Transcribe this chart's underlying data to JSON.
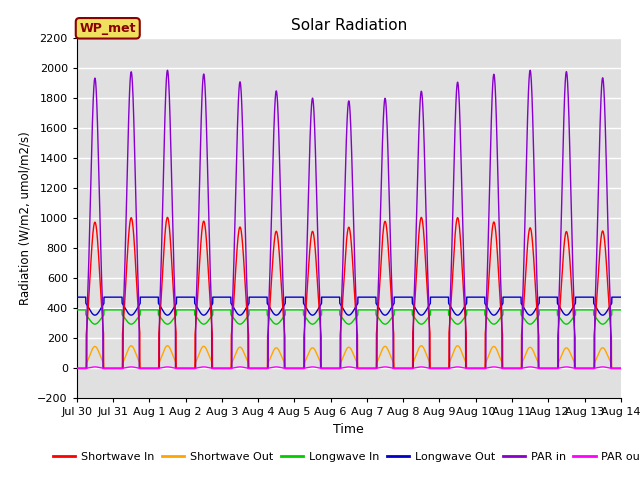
{
  "title": "Solar Radiation",
  "ylabel": "Radiation (W/m2, umol/m2/s)",
  "xlabel": "Time",
  "ylim": [
    -200,
    2200
  ],
  "yticks": [
    -200,
    0,
    200,
    400,
    600,
    800,
    1000,
    1200,
    1400,
    1600,
    1800,
    2000,
    2200
  ],
  "x_tick_labels": [
    "Jul 30",
    "Jul 31",
    "Aug 1",
    "Aug 2",
    "Aug 3",
    "Aug 4",
    "Aug 5",
    "Aug 6",
    "Aug 7",
    "Aug 8",
    "Aug 9",
    "Aug 10",
    "Aug 11",
    "Aug 12",
    "Aug 13",
    "Aug 14"
  ],
  "n_days": 15,
  "background_color": "#e0e0e0",
  "grid_color": "#ffffff",
  "annotation_text": "WP_met",
  "annotation_bg": "#f0e060",
  "annotation_border": "#8b0000",
  "series": {
    "shortwave_in": {
      "color": "#ff0000",
      "label": "Shortwave In",
      "peak": 1000,
      "night": 0
    },
    "shortwave_out": {
      "color": "#ffa500",
      "label": "Shortwave Out",
      "peak": 150,
      "night": 0
    },
    "longwave_in": {
      "color": "#00cc00",
      "label": "Longwave In",
      "night_high": 390,
      "day_low": 295
    },
    "longwave_out": {
      "color": "#0000cc",
      "label": "Longwave Out",
      "night_high": 475,
      "day_low": 355
    },
    "par_in": {
      "color": "#8800cc",
      "label": "PAR in",
      "peak": 2050,
      "night": 0
    },
    "par_out": {
      "color": "#ff00ff",
      "label": "PAR out",
      "peak": 10,
      "night": 0
    }
  }
}
